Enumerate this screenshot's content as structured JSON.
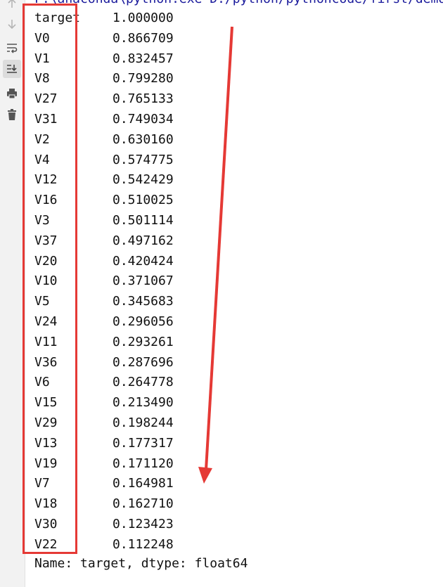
{
  "console": {
    "command_line": "F:\\anaconda\\python.exe D:/python/pythoncode/first/demo",
    "footer": "Name: target, dtype: float64"
  },
  "toolbar": {
    "icons": [
      "arrow-up-icon",
      "arrow-down-icon",
      "soft-wrap-icon",
      "scroll-to-end-icon",
      "print-icon",
      "trash-icon"
    ]
  },
  "correlations": [
    {
      "name": "target",
      "value": "1.000000"
    },
    {
      "name": "V0",
      "value": "0.866709"
    },
    {
      "name": "V1",
      "value": "0.832457"
    },
    {
      "name": "V8",
      "value": "0.799280"
    },
    {
      "name": "V27",
      "value": "0.765133"
    },
    {
      "name": "V31",
      "value": "0.749034"
    },
    {
      "name": "V2",
      "value": "0.630160"
    },
    {
      "name": "V4",
      "value": "0.574775"
    },
    {
      "name": "V12",
      "value": "0.542429"
    },
    {
      "name": "V16",
      "value": "0.510025"
    },
    {
      "name": "V3",
      "value": "0.501114"
    },
    {
      "name": "V37",
      "value": "0.497162"
    },
    {
      "name": "V20",
      "value": "0.420424"
    },
    {
      "name": "V10",
      "value": "0.371067"
    },
    {
      "name": "V5",
      "value": "0.345683"
    },
    {
      "name": "V24",
      "value": "0.296056"
    },
    {
      "name": "V11",
      "value": "0.293261"
    },
    {
      "name": "V36",
      "value": "0.287696"
    },
    {
      "name": "V6",
      "value": "0.264778"
    },
    {
      "name": "V15",
      "value": "0.213490"
    },
    {
      "name": "V29",
      "value": "0.198244"
    },
    {
      "name": "V13",
      "value": "0.177317"
    },
    {
      "name": "V19",
      "value": "0.171120"
    },
    {
      "name": "V7",
      "value": "0.164981"
    },
    {
      "name": "V18",
      "value": "0.162710"
    },
    {
      "name": "V30",
      "value": "0.123423"
    },
    {
      "name": "V22",
      "value": "0.112248"
    }
  ],
  "colors": {
    "annotation": "#e53935",
    "gutter": "#f2f2f2",
    "text": "#111111"
  }
}
